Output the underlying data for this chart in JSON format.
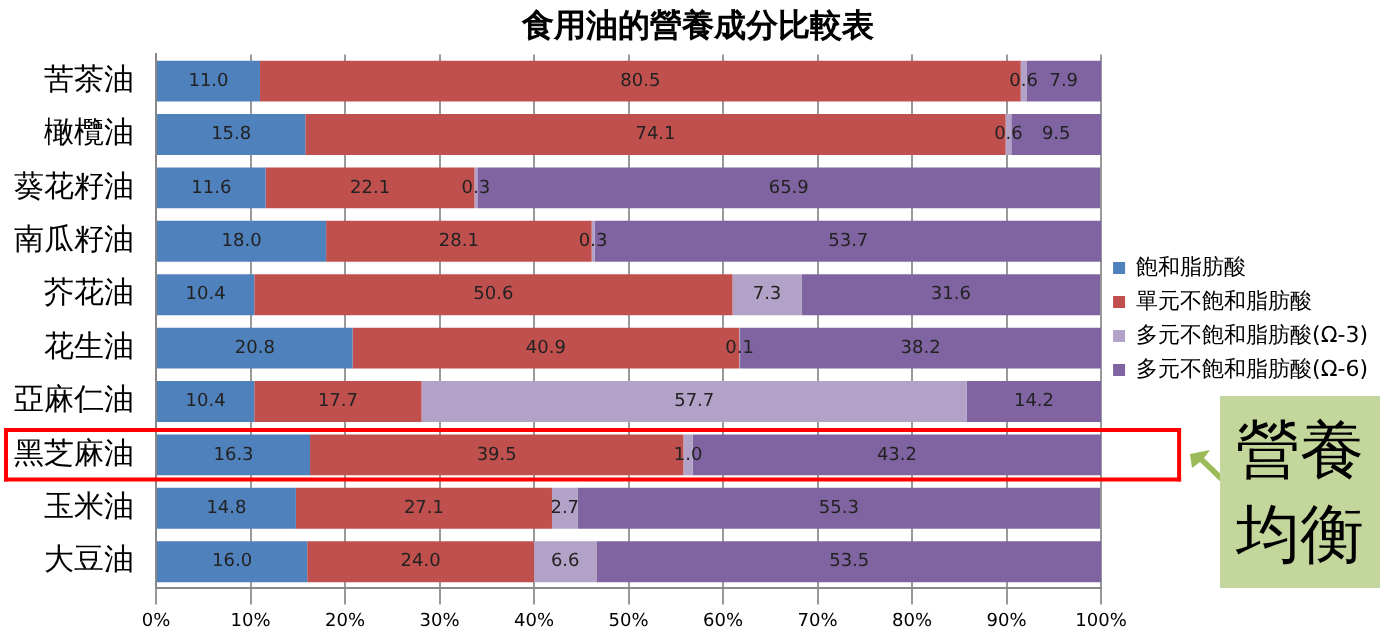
{
  "chart_data": {
    "type": "bar",
    "orientation": "horizontal",
    "stacked": true,
    "title": "食用油的營養成分比較表",
    "categories": [
      "苦茶油",
      "橄欖油",
      "葵花籽油",
      "南瓜籽油",
      "芥花油",
      "花生油",
      "亞麻仁油",
      "黑芝麻油",
      "玉米油",
      "大豆油"
    ],
    "series": [
      {
        "name": "飽和脂肪酸",
        "color": "#4f81bd",
        "values": [
          11.0,
          15.8,
          11.6,
          18.0,
          10.4,
          20.8,
          10.4,
          16.3,
          14.8,
          16.0
        ],
        "value_labels": [
          "11.0",
          "15.8",
          "11.6",
          "18.0",
          "10.4",
          "20.8",
          "10.4",
          "16.3",
          "14.8",
          "16.0"
        ]
      },
      {
        "name": "單元不飽和脂肪酸",
        "color": "#c0504d",
        "values": [
          80.5,
          74.1,
          22.1,
          28.1,
          50.6,
          40.9,
          17.7,
          39.5,
          27.1,
          24.0
        ],
        "value_labels": [
          "80.5",
          "74.1",
          "22.1",
          "28.1",
          "50.6",
          "40.9",
          "17.7",
          "39.5",
          "27.1",
          "24.0"
        ]
      },
      {
        "name": "多元不飽和脂肪酸(Ω-3)",
        "color": "#b3a2c7",
        "values": [
          0.6,
          0.6,
          0.3,
          0.3,
          7.3,
          0.1,
          57.7,
          1.0,
          2.7,
          6.6
        ],
        "value_labels": [
          "0.6",
          "0.6",
          "0.3",
          "0.3",
          "7.3",
          "0.1",
          "57.7",
          "1.0",
          "2.7",
          "6.6"
        ]
      },
      {
        "name": "多元不飽和脂肪酸(Ω-6)",
        "color": "#8064a2",
        "values": [
          7.9,
          9.5,
          65.9,
          53.7,
          31.6,
          38.2,
          14.2,
          43.2,
          55.3,
          53.5
        ],
        "value_labels": [
          "7.9",
          "9.5",
          "65.9",
          "53.7",
          "31.6",
          "38.2",
          "14.2",
          "43.2",
          "55.3",
          "53.5"
        ]
      }
    ],
    "xlim": [
      0,
      100
    ],
    "xticks": [
      {
        "value": 0,
        "label": "0%"
      },
      {
        "value": 10,
        "label": "10%"
      },
      {
        "value": 20,
        "label": "20%"
      },
      {
        "value": 30,
        "label": "30%"
      },
      {
        "value": 40,
        "label": "40%"
      },
      {
        "value": 50,
        "label": "50%"
      },
      {
        "value": 60,
        "label": "60%"
      },
      {
        "value": 70,
        "label": "70%"
      },
      {
        "value": 80,
        "label": "80%"
      },
      {
        "value": 90,
        "label": "90%"
      },
      {
        "value": 100,
        "label": "100%"
      }
    ],
    "grid": "x",
    "legend": "right",
    "annotations": [
      "營養均衡"
    ]
  }
}
